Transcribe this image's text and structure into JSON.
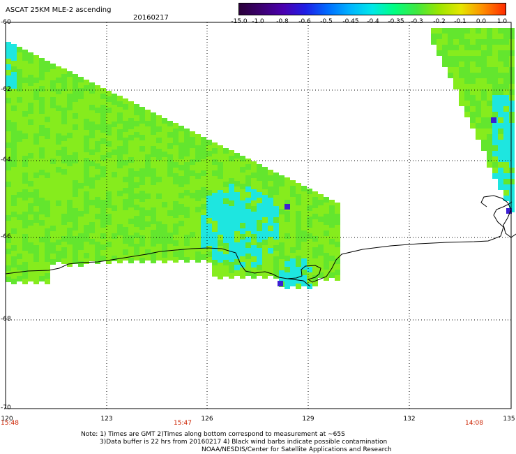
{
  "header": {
    "title": "ASCAT 25KM MLE-2 ascending",
    "date": "20160217"
  },
  "colorbar": {
    "labels": [
      "-15.0",
      "-1.0",
      "-0.8",
      "-0.6",
      "-0.5",
      "-0.45",
      "-0.4",
      "-0.35",
      "-0.3",
      "-0.2",
      "-0.1",
      "0.0",
      "1.0"
    ],
    "colors": [
      "#2a003a",
      "#3c0070",
      "#4a00b0",
      "#1e1ee6",
      "#006cff",
      "#00b4ff",
      "#00e8e8",
      "#00ff80",
      "#40e840",
      "#9be600",
      "#e6e600",
      "#ff8c00",
      "#ff2a00"
    ]
  },
  "map": {
    "lat_labels": [
      "-60",
      "-62",
      "-64",
      "-66",
      "-68",
      "-70"
    ],
    "lon_labels": [
      "120",
      "123",
      "126",
      "129",
      "132",
      "135"
    ],
    "time_labels": [
      "15:48",
      "15:47",
      "14:08"
    ],
    "colors": {
      "land_line": "#000000",
      "grid": "#000000",
      "water_green": "#63e62e",
      "water_lime": "#86ec1d",
      "water_cyan": "#1ee6e0",
      "water_blue": "#3c1ed2"
    }
  },
  "footer": {
    "line1": "Note: 1) Times are GMT 2)Times along bottom correspond to measurement at ~65S",
    "line2": "3)Data buffer is 22 hrs from 20160217 4) Black wind barbs indicate possible contamination",
    "line3": "NOAA/NESDIS/Center for Satellite Applications and Research"
  }
}
